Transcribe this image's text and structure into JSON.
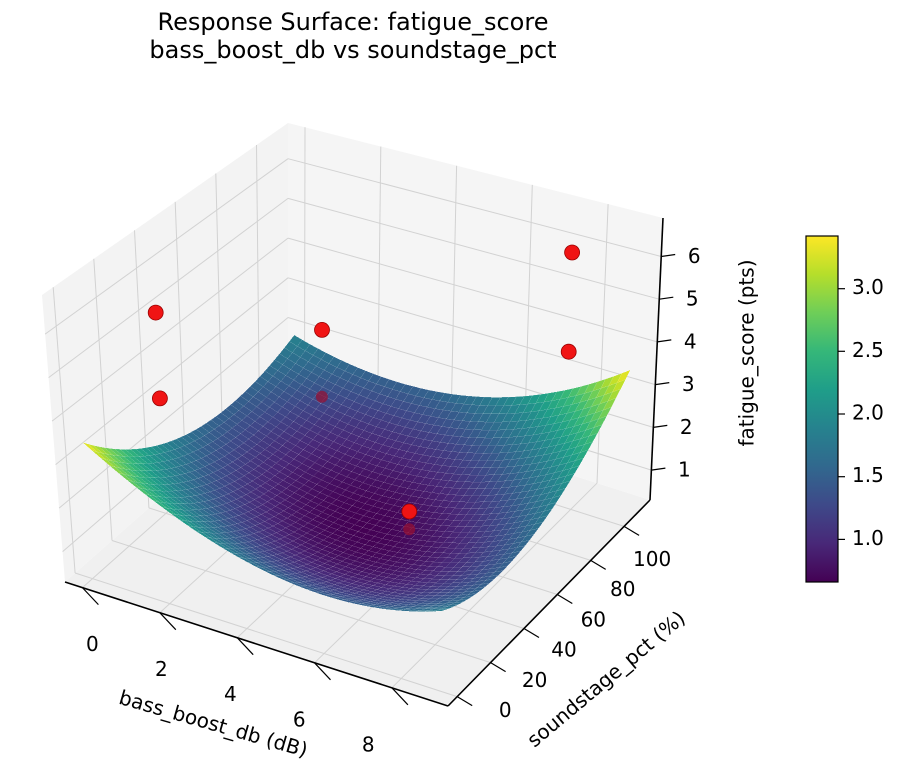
{
  "title": {
    "line1": "Response Surface: fatigue_score",
    "line2": "bass_boost_db vs soundstage_pct"
  },
  "axes": {
    "x": {
      "label": "bass_boost_db (dB)",
      "ticks": [
        0,
        2,
        4,
        6,
        8
      ],
      "lim": [
        -0.45,
        9.45
      ]
    },
    "y": {
      "label": "soundstage_pct (%)",
      "ticks": [
        0,
        20,
        40,
        60,
        80,
        100
      ],
      "lim": [
        -5.5,
        115.5
      ]
    },
    "z": {
      "label": "fatigue_score (pts)",
      "ticks": [
        1,
        2,
        3,
        4,
        5,
        6
      ],
      "lim": [
        0.3,
        6.9
      ]
    }
  },
  "colorbar": {
    "tick_labels": [
      "3.0",
      "2.5",
      "2.0",
      "1.5",
      "1.0"
    ],
    "tick_values": [
      3.0,
      2.5,
      2.0,
      1.5,
      1.0
    ],
    "vmin": 0.66,
    "vmax": 3.42
  },
  "chart_data": {
    "type": "3d-surface-with-scatter",
    "title": "Response Surface: fatigue_score — bass_boost_db vs soundstage_pct",
    "xlabel": "bass_boost_db (dB)",
    "ylabel": "soundstage_pct (%)",
    "zlabel": "fatigue_score (pts)",
    "surface": {
      "description": "convex bowl-shaped quadratic response surface, minimum ~0.66 pts near (bass_boost_db=4.5, soundstage_pct=55), rising to ~3.42 pts at corners (0,0) and (9,110), ~1.9 pts at corners (9,0) and (0,110)",
      "z_formula": "z = 0.66 + 0.0494*(x-4.5)^2 + 0.000331*(y-55)^2 + 0.00307*(x-4.5)*(y-55)",
      "coef": {
        "base": 0.66,
        "kx": 0.0494,
        "ky": 0.000331,
        "kxy": 0.00307,
        "cx": 4.5,
        "cy": 55
      },
      "x_range": [
        0,
        9
      ],
      "y_range": [
        0,
        110
      ],
      "z_min": 0.66,
      "z_max": 3.42
    },
    "scatter_points": [
      {
        "bass_boost_db": 0.5,
        "soundstage_pct": 30,
        "fatigue_score": 5.5,
        "occluded_by_surface": false
      },
      {
        "bass_boost_db": 0.5,
        "soundstage_pct": 30,
        "fatigue_score": 3.5,
        "occluded_by_surface": false
      },
      {
        "bass_boost_db": 1.0,
        "soundstage_pct": 105,
        "fatigue_score": 2.5,
        "occluded_by_surface": false
      },
      {
        "bass_boost_db": 1.0,
        "soundstage_pct": 105,
        "fatigue_score": 0.85,
        "occluded_by_surface": true
      },
      {
        "bass_boost_db": 7.8,
        "soundstage_pct": 100,
        "fatigue_score": 6.2,
        "occluded_by_surface": false
      },
      {
        "bass_boost_db": 7.8,
        "soundstage_pct": 100,
        "fatigue_score": 3.9,
        "occluded_by_surface": false
      },
      {
        "bass_boost_db": 5.5,
        "soundstage_pct": 60,
        "fatigue_score": 1.1,
        "occluded_by_surface": false
      },
      {
        "bass_boost_db": 5.5,
        "soundstage_pct": 60,
        "fatigue_score": 0.7,
        "occluded_by_surface": true
      }
    ],
    "colormap": {
      "name": "viridis",
      "stops": [
        "#440154",
        "#482878",
        "#3e4989",
        "#31688e",
        "#26828e",
        "#1f9e89",
        "#35b779",
        "#6ece58",
        "#b5de2b",
        "#fde725"
      ]
    },
    "legend": "none",
    "grid": true
  },
  "colors": {
    "scatter_red": "#f01414",
    "scatter_red_edge": "#990000",
    "occluded_dot": "rgba(150,15,50,0.72)",
    "pane_floor": "#f0f0f0",
    "pane_left_wall": "#f3f3f3",
    "pane_right_wall": "#f5f5f5",
    "grid_line": "#d2d2d2",
    "spine": "#000000",
    "background": "#ffffff"
  }
}
